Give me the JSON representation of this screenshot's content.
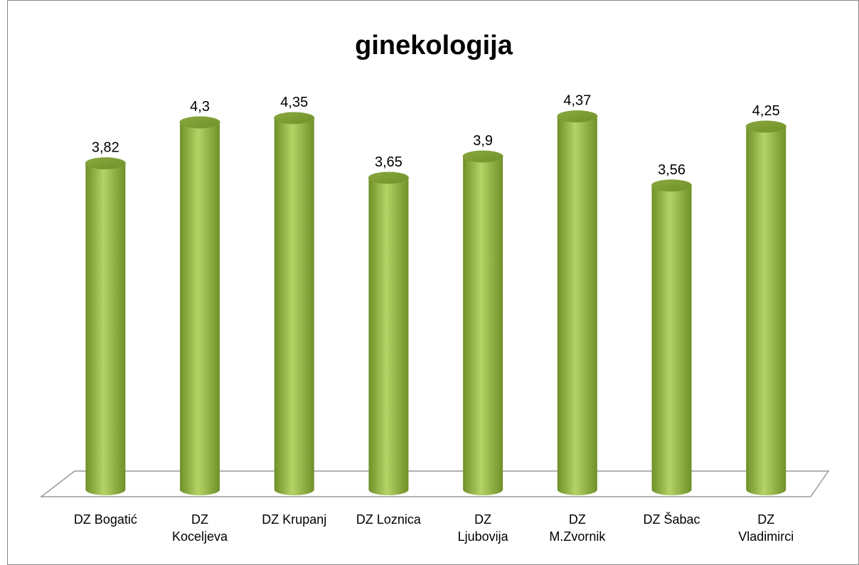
{
  "chart_data": {
    "type": "bar",
    "title": "ginekologija",
    "categories": [
      "DZ Bogatić",
      "DZ\nKoceljeva",
      "DZ Krupanj",
      "DZ Loznica",
      "DZ\nLjubovija",
      "DZ\nM.Zvornik",
      "DZ Šabac",
      "DZ\nVladimirci"
    ],
    "values": [
      3.82,
      4.3,
      4.35,
      3.65,
      3.9,
      4.37,
      3.56,
      4.25
    ],
    "value_labels": [
      "3,82",
      "4,3",
      "4,35",
      "3,65",
      "3,9",
      "4,37",
      "3,56",
      "4,25"
    ],
    "color": "#9bbb59",
    "ylim": [
      0,
      4.4
    ]
  }
}
